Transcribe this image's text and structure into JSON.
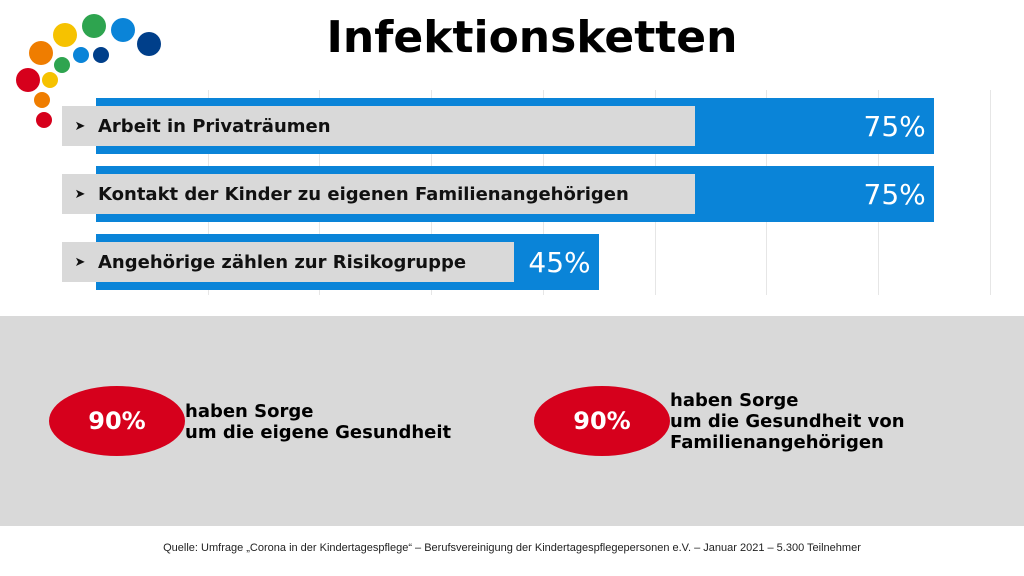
{
  "title": "Infektionsketten",
  "chart_data": {
    "type": "bar",
    "orientation": "horizontal",
    "categories": [
      "Arbeit in Privaträumen",
      "Kontakt der Kinder zu eigenen Familienangehörigen",
      "Angehörige zählen zur Risikogruppe"
    ],
    "values": [
      75,
      75,
      45
    ],
    "value_labels": [
      "75%",
      "75%",
      "45%"
    ],
    "xlim": [
      0,
      100
    ],
    "grid": true,
    "bar_color": "#0a84d8"
  },
  "stats": [
    {
      "value": "90%",
      "text": "haben Sorge\num die eigene Gesundheit"
    },
    {
      "value": "90%",
      "text": "haben Sorge\num die Gesundheit von\nFamilienangehörigen"
    }
  ],
  "source": "Quelle: Umfrage „Corona in der Kindertagespflege“ – Berufsvereinigung der Kindertagespflegepersonen e.V. – Januar 2021 – 5.300 Teilnehmer",
  "colors": {
    "accent_red": "#d6001c",
    "panel": "#d9d9d9"
  }
}
